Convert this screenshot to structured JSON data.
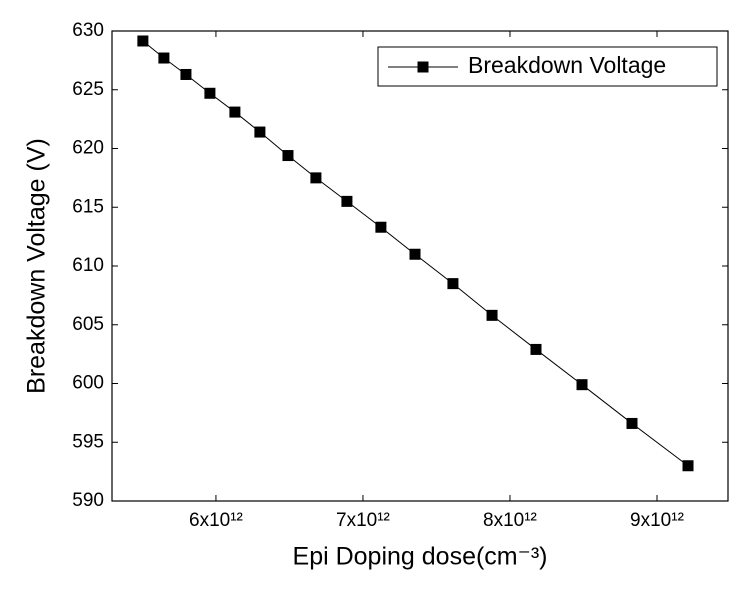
{
  "chart_data": {
    "type": "line",
    "x_label": "Epi Doping dose(cm⁻³)",
    "y_label": "Breakdown Voltage (V)",
    "x": [
      5503000000000.0,
      5646000000000.0,
      5796000000000.0,
      5959000000000.0,
      6129000000000.0,
      6299000000000.0,
      6490000000000.0,
      6680000000000.0,
      6891000000000.0,
      7122000000000.0,
      7354000000000.0,
      7612000000000.0,
      7878000000000.0,
      8177000000000.0,
      8490000000000.0,
      8830000000000.0,
      9211000000000.0
    ],
    "series": [
      {
        "name": "Breakdown Voltage",
        "color": "#000000",
        "marker": "square",
        "values": [
          629.15,
          627.7,
          626.3,
          624.7,
          623.1,
          621.4,
          619.4,
          617.5,
          615.5,
          613.3,
          611.0,
          608.5,
          605.8,
          602.9,
          599.9,
          596.6,
          593.0
        ]
      }
    ],
    "xlim": [
      5293000000000.0,
      9483000000000.0
    ],
    "xticks": [
      {
        "value": 6000000000000.0,
        "label": "6x10¹²"
      },
      {
        "value": 7000000000000.0,
        "label": "7x10¹²"
      },
      {
        "value": 8000000000000.0,
        "label": "8x10¹²"
      },
      {
        "value": 9000000000000.0,
        "label": "9x10¹²"
      }
    ],
    "ylim": [
      590,
      630
    ],
    "yticks": [
      590,
      595,
      600,
      605,
      610,
      615,
      620,
      625,
      630
    ],
    "legend": "upper-right",
    "grid": false
  }
}
